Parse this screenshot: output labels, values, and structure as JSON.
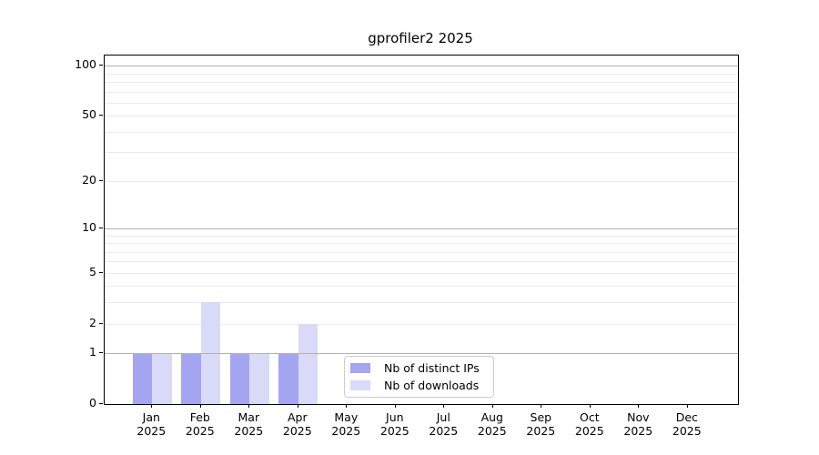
{
  "chart_data": {
    "type": "bar",
    "title": "gprofiler2 2025",
    "categories": [
      {
        "month": "Jan",
        "year": "2025"
      },
      {
        "month": "Feb",
        "year": "2025"
      },
      {
        "month": "Mar",
        "year": "2025"
      },
      {
        "month": "Apr",
        "year": "2025"
      },
      {
        "month": "May",
        "year": "2025"
      },
      {
        "month": "Jun",
        "year": "2025"
      },
      {
        "month": "Jul",
        "year": "2025"
      },
      {
        "month": "Aug",
        "year": "2025"
      },
      {
        "month": "Sep",
        "year": "2025"
      },
      {
        "month": "Oct",
        "year": "2025"
      },
      {
        "month": "Nov",
        "year": "2025"
      },
      {
        "month": "Dec",
        "year": "2025"
      }
    ],
    "series": [
      {
        "name": "Nb of distinct IPs",
        "color": "#a5a5f2",
        "values": [
          1,
          1,
          1,
          1,
          0,
          0,
          0,
          0,
          0,
          0,
          0,
          0
        ]
      },
      {
        "name": "Nb of downloads",
        "color": "#d9d9f8",
        "values": [
          1,
          3,
          1,
          2,
          0,
          0,
          0,
          0,
          0,
          0,
          0,
          0
        ]
      }
    ],
    "yscale": "log1p",
    "ylim": [
      0,
      115
    ],
    "y_tick_labels": [
      100,
      50,
      20,
      10,
      5,
      2,
      1,
      0
    ],
    "y_major_gridlines": [
      1,
      10,
      100
    ],
    "y_minor_gridlines": [
      2,
      3,
      4,
      5,
      6,
      7,
      8,
      9,
      20,
      30,
      40,
      50,
      60,
      70,
      80,
      90
    ],
    "grid": true,
    "legend_position": "lower center"
  },
  "legend": {
    "items": [
      {
        "label": "Nb of distinct IPs"
      },
      {
        "label": "Nb of downloads"
      }
    ]
  },
  "colors": {
    "distinct_ips": "#a5a5f2",
    "downloads": "#d9d9f8",
    "grid_major": "#b2b2b2",
    "grid_minor": "#ececec",
    "axis": "#000000",
    "legend_border": "#cccccc",
    "background": "#ffffff"
  }
}
